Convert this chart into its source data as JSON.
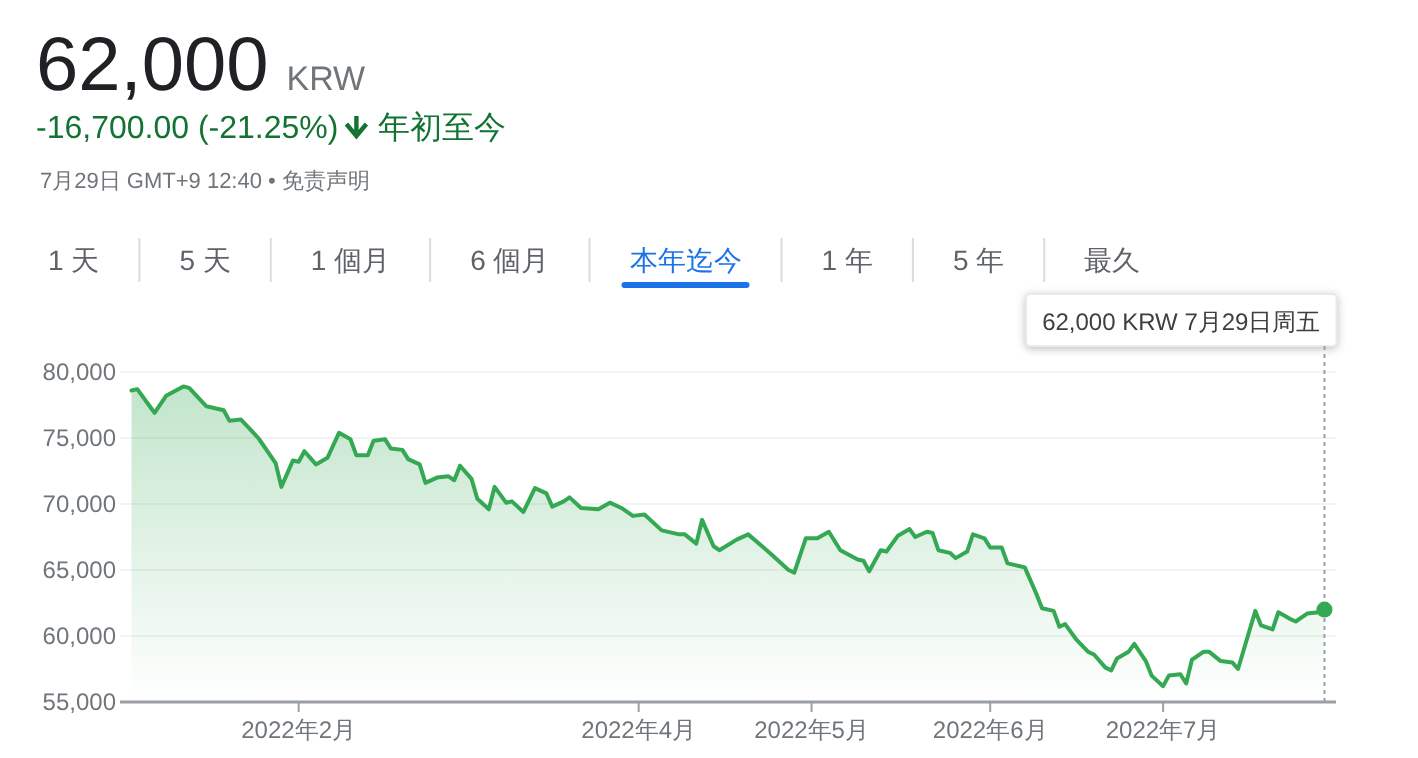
{
  "chart_data": {
    "type": "area",
    "title": "62,000",
    "subtitle": "-16,700.00 (-21.25%)",
    "annotations": [
      "KRW",
      "年初至今",
      "7月29日 GMT+9 12:40 • 免责声明",
      "1 天",
      "5 天",
      "1 個月",
      "6 個月",
      "本年迄今",
      "1 年",
      "5 年",
      "最久"
    ],
    "x": [
      "2022-01-03",
      "2022-01-04",
      "2022-01-06",
      "2022-01-07",
      "2022-01-09",
      "2022-01-12",
      "2022-01-13",
      "2022-01-16",
      "2022-01-19",
      "2022-01-20",
      "2022-01-22",
      "2022-01-25",
      "2022-01-28",
      "2022-01-29",
      "2022-01-31",
      "2022-02-01",
      "2022-02-02",
      "2022-02-04",
      "2022-02-06",
      "2022-02-08",
      "2022-02-10",
      "2022-02-11",
      "2022-02-13",
      "2022-02-14",
      "2022-02-16",
      "2022-02-17",
      "2022-02-19",
      "2022-02-20",
      "2022-02-22",
      "2022-02-23",
      "2022-02-25",
      "2022-02-27",
      "2022-02-28",
      "2022-03-01",
      "2022-03-03",
      "2022-03-04",
      "2022-03-06",
      "2022-03-07",
      "2022-03-09",
      "2022-03-10",
      "2022-03-12",
      "2022-03-14",
      "2022-03-16",
      "2022-03-17",
      "2022-03-19",
      "2022-03-20",
      "2022-03-22",
      "2022-03-25",
      "2022-03-27",
      "2022-03-29",
      "2022-03-31",
      "2022-04-02",
      "2022-04-05",
      "2022-04-08",
      "2022-04-09",
      "2022-04-11",
      "2022-04-12",
      "2022-04-14",
      "2022-04-15",
      "2022-04-18",
      "2022-04-20",
      "2022-04-24",
      "2022-04-27",
      "2022-04-28",
      "2022-04-30",
      "2022-05-02",
      "2022-05-04",
      "2022-05-06",
      "2022-05-09",
      "2022-05-10",
      "2022-05-11",
      "2022-05-13",
      "2022-05-14",
      "2022-05-16",
      "2022-05-18",
      "2022-05-19",
      "2022-05-21",
      "2022-05-22",
      "2022-05-23",
      "2022-05-25",
      "2022-05-26",
      "2022-05-28",
      "2022-05-29",
      "2022-05-31",
      "2022-06-01",
      "2022-06-03",
      "2022-06-04",
      "2022-06-07",
      "2022-06-09",
      "2022-06-10",
      "2022-06-12",
      "2022-06-13",
      "2022-06-14",
      "2022-06-16",
      "2022-06-18",
      "2022-06-19",
      "2022-06-21",
      "2022-06-22",
      "2022-06-23",
      "2022-06-25",
      "2022-06-26",
      "2022-06-28",
      "2022-06-29",
      "2022-07-01",
      "2022-07-02",
      "2022-07-04",
      "2022-07-05",
      "2022-07-06",
      "2022-07-08",
      "2022-07-09",
      "2022-07-11",
      "2022-07-13",
      "2022-07-14",
      "2022-07-17",
      "2022-07-18",
      "2022-07-20",
      "2022-07-21",
      "2022-07-23",
      "2022-07-24",
      "2022-07-26",
      "2022-07-28",
      "2022-07-29"
    ],
    "series": [
      {
        "color": "#34a853",
        "values": [
          78600,
          78700,
          77500,
          76900,
          78200,
          78900,
          78800,
          77400,
          77100,
          76300,
          76400,
          75000,
          73100,
          71300,
          73300,
          73200,
          74000,
          73000,
          73500,
          75400,
          74900,
          73700,
          73700,
          74800,
          74900,
          74200,
          74100,
          73400,
          73000,
          71600,
          72000,
          72100,
          71800,
          72900,
          71900,
          70400,
          69600,
          71300,
          70100,
          70200,
          69400,
          71200,
          70800,
          69800,
          70200,
          70500,
          69700,
          69600,
          70100,
          69700,
          69100,
          69200,
          68000,
          67700,
          67700,
          67000,
          68800,
          66800,
          66500,
          67300,
          67700,
          66200,
          65000,
          64800,
          67400,
          67400,
          67900,
          66500,
          65800,
          65700,
          64900,
          66500,
          66400,
          67600,
          68100,
          67500,
          67900,
          67800,
          66500,
          66300,
          65900,
          66400,
          67700,
          67400,
          66700,
          66700,
          65500,
          65200,
          63200,
          62100,
          61900,
          60700,
          60900,
          59700,
          58800,
          58600,
          57600,
          57400,
          58300,
          58800,
          59400,
          58100,
          57000,
          56200,
          57000,
          57100,
          56400,
          58200,
          58800,
          58800,
          58100,
          58000,
          57500,
          61900,
          60800,
          60500,
          61800,
          61300,
          61100,
          61700,
          61800,
          62000
        ]
      }
    ],
    "xlim": [
      "2022-01-01",
      "2022-07-31"
    ],
    "xticks": [
      {
        "value": "2022-02-01",
        "label": "2022年2月"
      },
      {
        "value": "2022-04-01",
        "label": "2022年4月"
      },
      {
        "value": "2022-05-01",
        "label": "2022年5月"
      },
      {
        "value": "2022-06-01",
        "label": "2022年6月"
      },
      {
        "value": "2022-07-01",
        "label": "2022年7月"
      }
    ],
    "ylim": [
      55000,
      80000
    ],
    "yticks": [
      {
        "value": 55000,
        "label": "55,000"
      },
      {
        "value": 60000,
        "label": "60,000"
      },
      {
        "value": 65000,
        "label": "65,000"
      },
      {
        "value": 70000,
        "label": "70,000"
      },
      {
        "value": 75000,
        "label": "75,000"
      },
      {
        "value": 80000,
        "label": "80,000"
      }
    ],
    "grid": "y",
    "ref_lines": [
      {
        "axis": "x",
        "value": "2022-07-29",
        "label": "62,000 KRW  7月29日周五",
        "line_style": "dotted",
        "color": "#9aa0a6"
      }
    ]
  }
}
